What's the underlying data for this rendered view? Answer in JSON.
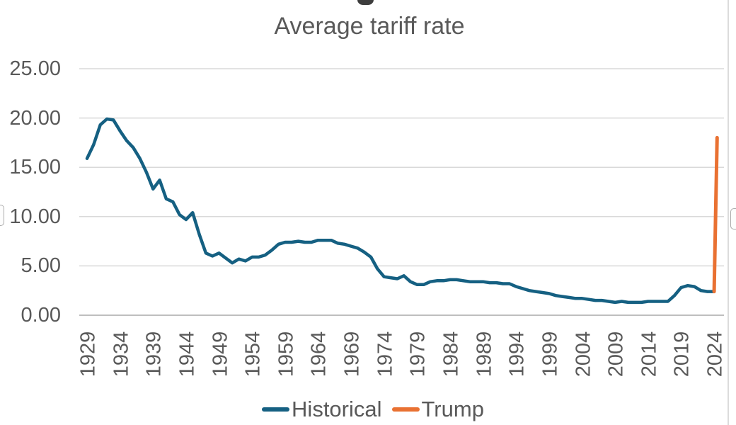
{
  "title": "Average tariff rate",
  "colors": {
    "historical": "#156082",
    "trump": "#E97132",
    "text": "#595959",
    "gridline": "#D9D9D9",
    "axis_line": "#BFBFBF",
    "background": "#FFFFFF"
  },
  "legend": {
    "items": [
      {
        "label": "Historical",
        "color": "#156082"
      },
      {
        "label": "Trump",
        "color": "#E97132"
      }
    ]
  },
  "chart_data": {
    "type": "line",
    "title": "Average tariff rate",
    "xlabel": "",
    "ylabel": "",
    "ylim": [
      0,
      25
    ],
    "xlim": [
      1929,
      2025
    ],
    "grid": true,
    "legend_position": "bottom",
    "y_ticks": [
      {
        "label": "25.00",
        "value": 25
      },
      {
        "label": "20.00",
        "value": 20
      },
      {
        "label": "15.00",
        "value": 15
      },
      {
        "label": "10.00",
        "value": 10
      },
      {
        "label": "5.00",
        "value": 5
      },
      {
        "label": "0.00",
        "value": 0
      }
    ],
    "x_ticks": [
      1929,
      1934,
      1939,
      1944,
      1949,
      1954,
      1959,
      1964,
      1969,
      1974,
      1979,
      1984,
      1989,
      1994,
      1999,
      2004,
      2009,
      2014,
      2019,
      2024
    ],
    "series": [
      {
        "name": "Historical",
        "color": "#156082",
        "start_year": 1929,
        "x": [
          1929,
          1930,
          1931,
          1932,
          1933,
          1934,
          1935,
          1936,
          1937,
          1938,
          1939,
          1940,
          1941,
          1942,
          1943,
          1944,
          1945,
          1946,
          1947,
          1948,
          1949,
          1950,
          1951,
          1952,
          1953,
          1954,
          1955,
          1956,
          1957,
          1958,
          1959,
          1960,
          1961,
          1962,
          1963,
          1964,
          1965,
          1966,
          1967,
          1968,
          1969,
          1970,
          1971,
          1972,
          1973,
          1974,
          1975,
          1976,
          1977,
          1978,
          1979,
          1980,
          1981,
          1982,
          1983,
          1984,
          1985,
          1986,
          1987,
          1988,
          1989,
          1990,
          1991,
          1992,
          1993,
          1994,
          1995,
          1996,
          1997,
          1998,
          1999,
          2000,
          2001,
          2002,
          2003,
          2004,
          2005,
          2006,
          2007,
          2008,
          2009,
          2010,
          2011,
          2012,
          2013,
          2014,
          2015,
          2016,
          2017,
          2018,
          2019,
          2020,
          2021,
          2022,
          2023,
          2024
        ],
        "values": [
          15.9,
          17.3,
          19.3,
          19.9,
          19.8,
          18.7,
          17.7,
          17.0,
          15.9,
          14.5,
          12.8,
          13.7,
          11.8,
          11.5,
          10.2,
          9.7,
          10.4,
          8.2,
          6.3,
          6.0,
          6.3,
          5.8,
          5.3,
          5.7,
          5.5,
          5.9,
          5.9,
          6.1,
          6.6,
          7.2,
          7.4,
          7.4,
          7.5,
          7.4,
          7.4,
          7.6,
          7.6,
          7.6,
          7.3,
          7.2,
          7.0,
          6.8,
          6.4,
          5.9,
          4.7,
          3.9,
          3.8,
          3.7,
          4.0,
          3.4,
          3.1,
          3.1,
          3.4,
          3.5,
          3.5,
          3.6,
          3.6,
          3.5,
          3.4,
          3.4,
          3.4,
          3.3,
          3.3,
          3.2,
          3.2,
          2.9,
          2.7,
          2.5,
          2.4,
          2.3,
          2.2,
          2.0,
          1.9,
          1.8,
          1.7,
          1.7,
          1.6,
          1.5,
          1.5,
          1.4,
          1.3,
          1.4,
          1.3,
          1.3,
          1.3,
          1.4,
          1.4,
          1.4,
          1.4,
          2.0,
          2.8,
          3.0,
          2.9,
          2.5,
          2.4,
          2.4
        ]
      },
      {
        "name": "Trump",
        "color": "#E97132",
        "x": [
          2024,
          2024.45
        ],
        "values": [
          2.4,
          18.0
        ]
      }
    ]
  }
}
